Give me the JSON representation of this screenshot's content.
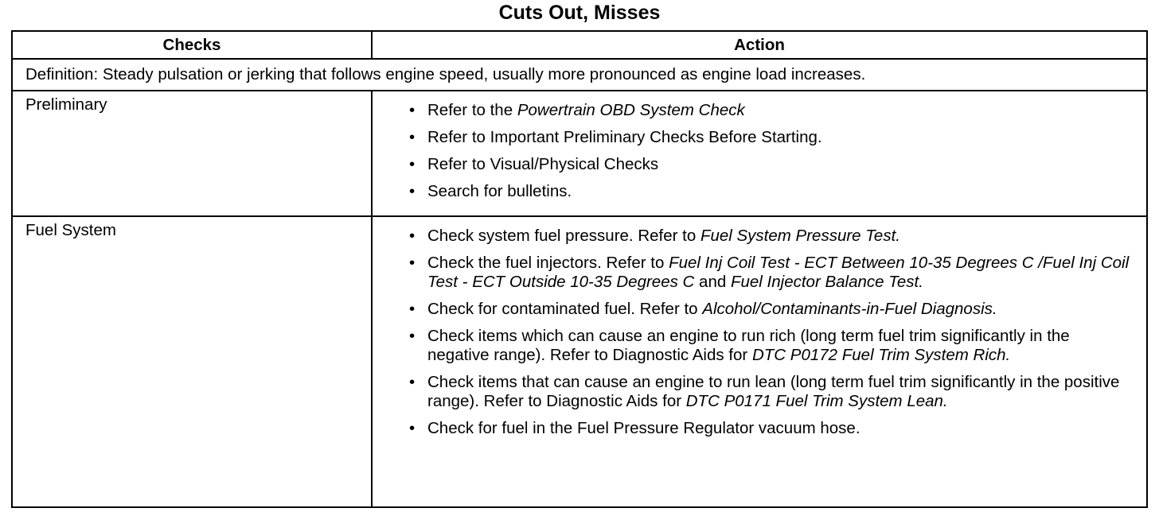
{
  "title": "Cuts Out, Misses",
  "table": {
    "headers": [
      "Checks",
      "Action"
    ],
    "definition": "Definition: Steady pulsation or jerking that follows engine speed, usually more pronounced as engine load increases.",
    "rows": [
      {
        "check": "Preliminary",
        "actions": [
          [
            {
              "text": "Refer to the "
            },
            {
              "text": "Powertrain OBD System Check",
              "italic": true
            }
          ],
          [
            {
              "text": "Refer to Important Preliminary Checks Before Starting."
            }
          ],
          [
            {
              "text": "Refer to Visual/Physical Checks"
            }
          ],
          [
            {
              "text": "Search for bulletins."
            }
          ]
        ]
      },
      {
        "check": "Fuel System",
        "actions": [
          [
            {
              "text": "Check system fuel pressure. Refer to "
            },
            {
              "text": "Fuel System Pressure Test.",
              "italic": true
            }
          ],
          [
            {
              "text": "Check the fuel injectors. Refer to "
            },
            {
              "text": "Fuel Inj Coil Test - ECT Between 10-35 Degrees C /Fuel Inj Coil Test - ECT Outside 10-35 Degrees C",
              "italic": true
            },
            {
              "text": " and "
            },
            {
              "text": "Fuel Injector Balance Test.",
              "italic": true
            }
          ],
          [
            {
              "text": "Check for contaminated fuel. Refer to "
            },
            {
              "text": "Alcohol/Contaminants-in-Fuel Diagnosis.",
              "italic": true
            }
          ],
          [
            {
              "text": "Check items which can cause an engine to run rich (long term fuel trim significantly in the negative range). Refer to Diagnostic Aids for "
            },
            {
              "text": "DTC P0172 Fuel Trim System Rich.",
              "italic": true
            }
          ],
          [
            {
              "text": "Check items that can cause an engine to run lean (long term fuel trim significantly in the positive range). Refer to Diagnostic Aids for "
            },
            {
              "text": "DTC P0171 Fuel Trim System Lean.",
              "italic": true
            }
          ],
          [
            {
              "text": "Check for fuel in the Fuel Pressure Regulator vacuum hose."
            }
          ]
        ]
      }
    ]
  }
}
